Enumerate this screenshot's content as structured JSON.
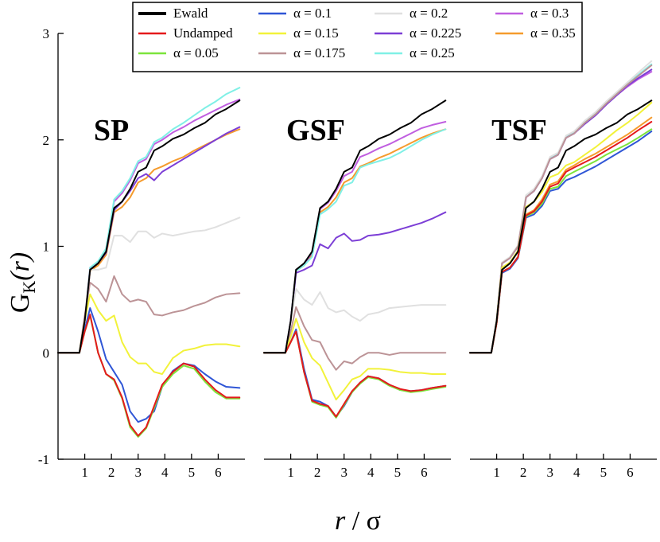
{
  "chart_data": {
    "type": "line",
    "ylabel_main": "G",
    "ylabel_sub": "K",
    "ylabel_arg": "(r)",
    "xlabel_var": "r",
    "xlabel_rest": " / σ",
    "ylim": [
      -1,
      3
    ],
    "xlim": [
      0,
      7
    ],
    "yticks": [
      "-1",
      "0",
      "1",
      "2",
      "3"
    ],
    "xticks": [
      "1",
      "2",
      "3",
      "4",
      "5",
      "6"
    ],
    "legend": [
      {
        "label": "Ewald",
        "color": "#000000"
      },
      {
        "label": "Undamped",
        "color": "#e41a1c"
      },
      {
        "label": "α = 0.05",
        "color": "#7ce43c"
      },
      {
        "label": "α = 0.1",
        "color": "#2f56d6"
      },
      {
        "label": "α = 0.15",
        "color": "#f2f23a"
      },
      {
        "label": "α = 0.175",
        "color": "#bc9396"
      },
      {
        "label": "α = 0.2",
        "color": "#e0e0e0"
      },
      {
        "label": "α = 0.225",
        "color": "#7c3ed6"
      },
      {
        "label": "α = 0.25",
        "color": "#80f0e6"
      },
      {
        "label": "α = 0.3",
        "color": "#c05ee0"
      },
      {
        "label": "α = 0.35",
        "color": "#f59b2d"
      }
    ],
    "x": [
      0,
      0.8,
      1.0,
      1.2,
      1.5,
      1.8,
      2.1,
      2.4,
      2.7,
      3.0,
      3.3,
      3.6,
      3.9,
      4.3,
      4.7,
      5.1,
      5.5,
      5.9,
      6.3,
      6.8
    ],
    "panels": [
      {
        "label": "SP",
        "series": [
          {
            "name": "Ewald",
            "values": [
              0,
              0,
              0.3,
              0.78,
              0.84,
              0.95,
              1.36,
              1.42,
              1.54,
              1.7,
              1.74,
              1.9,
              1.94,
              2.01,
              2.05,
              2.11,
              2.16,
              2.24,
              2.29,
              2.37
            ]
          },
          {
            "name": "Undamped",
            "values": [
              0,
              0,
              0.2,
              0.36,
              0.0,
              -0.2,
              -0.25,
              -0.42,
              -0.68,
              -0.78,
              -0.7,
              -0.5,
              -0.3,
              -0.18,
              -0.1,
              -0.13,
              -0.25,
              -0.35,
              -0.42,
              -0.42
            ]
          },
          {
            "name": "α = 0.05",
            "values": [
              0,
              0,
              0.2,
              0.35,
              0.0,
              -0.2,
              -0.26,
              -0.43,
              -0.7,
              -0.79,
              -0.71,
              -0.52,
              -0.32,
              -0.2,
              -0.12,
              -0.15,
              -0.27,
              -0.37,
              -0.43,
              -0.43
            ]
          },
          {
            "name": "α = 0.1",
            "values": [
              0,
              0,
              0.22,
              0.42,
              0.2,
              -0.06,
              -0.18,
              -0.3,
              -0.55,
              -0.65,
              -0.62,
              -0.55,
              -0.32,
              -0.17,
              -0.1,
              -0.12,
              -0.2,
              -0.27,
              -0.32,
              -0.33
            ]
          },
          {
            "name": "α = 0.15",
            "values": [
              0,
              0,
              0.3,
              0.55,
              0.4,
              0.3,
              0.35,
              0.1,
              -0.04,
              -0.1,
              -0.1,
              -0.18,
              -0.2,
              -0.05,
              0.02,
              0.04,
              0.07,
              0.08,
              0.08,
              0.06
            ]
          },
          {
            "name": "α = 0.175",
            "values": [
              0,
              0,
              0.35,
              0.66,
              0.6,
              0.48,
              0.72,
              0.55,
              0.48,
              0.5,
              0.48,
              0.36,
              0.35,
              0.38,
              0.4,
              0.44,
              0.47,
              0.52,
              0.55,
              0.56
            ]
          },
          {
            "name": "α = 0.2",
            "values": [
              0,
              0,
              0.32,
              0.78,
              0.78,
              0.8,
              1.1,
              1.1,
              1.04,
              1.14,
              1.14,
              1.08,
              1.12,
              1.1,
              1.12,
              1.14,
              1.15,
              1.18,
              1.22,
              1.27
            ]
          },
          {
            "name": "α = 0.225",
            "values": [
              0,
              0,
              0.3,
              0.78,
              0.84,
              0.94,
              1.34,
              1.42,
              1.52,
              1.64,
              1.68,
              1.62,
              1.7,
              1.76,
              1.82,
              1.88,
              1.94,
              2.0,
              2.06,
              2.12
            ]
          },
          {
            "name": "α = 0.25",
            "values": [
              0,
              0,
              0.3,
              0.8,
              0.86,
              0.98,
              1.44,
              1.52,
              1.64,
              1.8,
              1.84,
              1.98,
              2.02,
              2.1,
              2.16,
              2.23,
              2.3,
              2.36,
              2.43,
              2.49
            ]
          },
          {
            "name": "α = 0.3",
            "values": [
              0,
              0,
              0.3,
              0.8,
              0.85,
              0.97,
              1.42,
              1.5,
              1.62,
              1.78,
              1.82,
              1.96,
              2.0,
              2.07,
              2.12,
              2.18,
              2.23,
              2.28,
              2.33,
              2.38
            ]
          },
          {
            "name": "α = 0.35",
            "values": [
              0,
              0,
              0.3,
              0.77,
              0.82,
              0.92,
              1.32,
              1.37,
              1.46,
              1.6,
              1.64,
              1.72,
              1.75,
              1.8,
              1.84,
              1.9,
              1.95,
              2.0,
              2.05,
              2.1
            ]
          }
        ]
      },
      {
        "label": "GSF",
        "series": [
          {
            "name": "Ewald",
            "values": [
              0,
              0,
              0.3,
              0.78,
              0.84,
              0.95,
              1.36,
              1.42,
              1.54,
              1.7,
              1.74,
              1.9,
              1.94,
              2.01,
              2.05,
              2.11,
              2.16,
              2.24,
              2.29,
              2.37
            ]
          },
          {
            "name": "Undamped",
            "values": [
              0,
              0,
              0.1,
              0.2,
              -0.18,
              -0.45,
              -0.48,
              -0.5,
              -0.6,
              -0.48,
              -0.36,
              -0.28,
              -0.22,
              -0.24,
              -0.3,
              -0.34,
              -0.36,
              -0.35,
              -0.33,
              -0.31
            ]
          },
          {
            "name": "α = 0.05",
            "values": [
              0,
              0,
              0.1,
              0.2,
              -0.18,
              -0.46,
              -0.49,
              -0.51,
              -0.61,
              -0.49,
              -0.37,
              -0.29,
              -0.23,
              -0.25,
              -0.31,
              -0.35,
              -0.37,
              -0.36,
              -0.34,
              -0.32
            ]
          },
          {
            "name": "α = 0.1",
            "values": [
              0,
              0,
              0.1,
              0.22,
              -0.15,
              -0.44,
              -0.46,
              -0.5,
              -0.6,
              -0.5,
              -0.37,
              -0.28,
              -0.22,
              -0.24,
              -0.3,
              -0.35,
              -0.36,
              -0.35,
              -0.33,
              -0.31
            ]
          },
          {
            "name": "α = 0.15",
            "values": [
              0,
              0,
              0.15,
              0.32,
              0.1,
              -0.05,
              -0.12,
              -0.28,
              -0.44,
              -0.35,
              -0.25,
              -0.22,
              -0.15,
              -0.15,
              -0.16,
              -0.18,
              -0.19,
              -0.19,
              -0.2,
              -0.2
            ]
          },
          {
            "name": "α = 0.175",
            "values": [
              0,
              0,
              0.2,
              0.43,
              0.25,
              0.12,
              0.1,
              -0.05,
              -0.16,
              -0.08,
              -0.1,
              -0.04,
              0.0,
              0.0,
              -0.02,
              0.0,
              0.0,
              0.0,
              0.0,
              0.0
            ]
          },
          {
            "name": "α = 0.2",
            "values": [
              0,
              0,
              0.3,
              0.6,
              0.5,
              0.45,
              0.57,
              0.42,
              0.38,
              0.4,
              0.34,
              0.3,
              0.36,
              0.38,
              0.42,
              0.43,
              0.44,
              0.45,
              0.45,
              0.45
            ]
          },
          {
            "name": "α = 0.225",
            "values": [
              0,
              0,
              0.3,
              0.75,
              0.78,
              0.82,
              1.02,
              0.98,
              1.08,
              1.12,
              1.05,
              1.06,
              1.1,
              1.11,
              1.13,
              1.16,
              1.19,
              1.22,
              1.26,
              1.32
            ]
          },
          {
            "name": "α = 0.25",
            "values": [
              0,
              0,
              0.3,
              0.77,
              0.82,
              0.9,
              1.3,
              1.35,
              1.42,
              1.57,
              1.6,
              1.74,
              1.77,
              1.8,
              1.83,
              1.88,
              1.94,
              2.0,
              2.05,
              2.1
            ]
          },
          {
            "name": "α = 0.3",
            "values": [
              0,
              0,
              0.3,
              0.78,
              0.83,
              0.94,
              1.35,
              1.41,
              1.52,
              1.66,
              1.7,
              1.84,
              1.87,
              1.92,
              1.96,
              2.01,
              2.06,
              2.11,
              2.14,
              2.17
            ]
          },
          {
            "name": "α = 0.35",
            "values": [
              0,
              0,
              0.3,
              0.77,
              0.82,
              0.92,
              1.32,
              1.37,
              1.46,
              1.6,
              1.64,
              1.75,
              1.78,
              1.83,
              1.87,
              1.92,
              1.97,
              2.02,
              2.06,
              2.1
            ]
          }
        ]
      },
      {
        "label": "TSF",
        "series": [
          {
            "name": "Ewald",
            "values": [
              0,
              0,
              0.3,
              0.78,
              0.84,
              0.95,
              1.36,
              1.42,
              1.54,
              1.7,
              1.74,
              1.9,
              1.94,
              2.01,
              2.05,
              2.11,
              2.16,
              2.24,
              2.29,
              2.37
            ]
          },
          {
            "name": "Undamped",
            "values": [
              0,
              0,
              0.28,
              0.76,
              0.8,
              0.9,
              1.29,
              1.33,
              1.42,
              1.56,
              1.59,
              1.7,
              1.74,
              1.79,
              1.84,
              1.9,
              1.96,
              2.02,
              2.09,
              2.17
            ]
          },
          {
            "name": "α = 0.05",
            "values": [
              0,
              0,
              0.28,
              0.76,
              0.8,
              0.9,
              1.28,
              1.32,
              1.4,
              1.54,
              1.56,
              1.66,
              1.7,
              1.75,
              1.8,
              1.86,
              1.91,
              1.96,
              2.02,
              2.1
            ]
          },
          {
            "name": "α = 0.1",
            "values": [
              0,
              0,
              0.28,
              0.75,
              0.79,
              0.89,
              1.27,
              1.3,
              1.38,
              1.52,
              1.54,
              1.62,
              1.65,
              1.7,
              1.75,
              1.81,
              1.87,
              1.93,
              1.99,
              2.08
            ]
          },
          {
            "name": "α = 0.15",
            "values": [
              0,
              0,
              0.3,
              0.8,
              0.85,
              0.96,
              1.37,
              1.42,
              1.51,
              1.65,
              1.68,
              1.76,
              1.79,
              1.86,
              1.93,
              2.01,
              2.09,
              2.16,
              2.24,
              2.35
            ]
          },
          {
            "name": "α = 0.175",
            "values": [
              0,
              0,
              0.3,
              0.84,
              0.89,
              1.0,
              1.46,
              1.52,
              1.64,
              1.82,
              1.86,
              2.02,
              2.06,
              2.16,
              2.24,
              2.34,
              2.43,
              2.52,
              2.6,
              2.7
            ]
          },
          {
            "name": "α = 0.2",
            "values": [
              0,
              0,
              0.3,
              0.85,
              0.9,
              1.01,
              1.48,
              1.54,
              1.66,
              1.84,
              1.88,
              2.04,
              2.08,
              2.18,
              2.26,
              2.36,
              2.45,
              2.54,
              2.63,
              2.74
            ]
          },
          {
            "name": "α = 0.225",
            "values": [
              0,
              0,
              0.3,
              0.84,
              0.89,
              1.0,
              1.46,
              1.52,
              1.64,
              1.82,
              1.86,
              2.02,
              2.06,
              2.15,
              2.23,
              2.33,
              2.42,
              2.51,
              2.58,
              2.66
            ]
          },
          {
            "name": "α = 0.25",
            "values": [
              0,
              0,
              0.3,
              0.84,
              0.89,
              1.0,
              1.47,
              1.53,
              1.65,
              1.83,
              1.87,
              2.03,
              2.07,
              2.17,
              2.25,
              2.35,
              2.44,
              2.53,
              2.61,
              2.71
            ]
          },
          {
            "name": "α = 0.3",
            "values": [
              0,
              0,
              0.3,
              0.84,
              0.89,
              1.0,
              1.46,
              1.52,
              1.64,
              1.82,
              1.86,
              2.02,
              2.06,
              2.15,
              2.23,
              2.33,
              2.42,
              2.5,
              2.57,
              2.64
            ]
          },
          {
            "name": "α = 0.35",
            "values": [
              0,
              0,
              0.28,
              0.76,
              0.8,
              0.9,
              1.3,
              1.34,
              1.44,
              1.58,
              1.61,
              1.72,
              1.76,
              1.82,
              1.87,
              1.93,
              1.99,
              2.05,
              2.12,
              2.21
            ]
          }
        ]
      }
    ]
  }
}
